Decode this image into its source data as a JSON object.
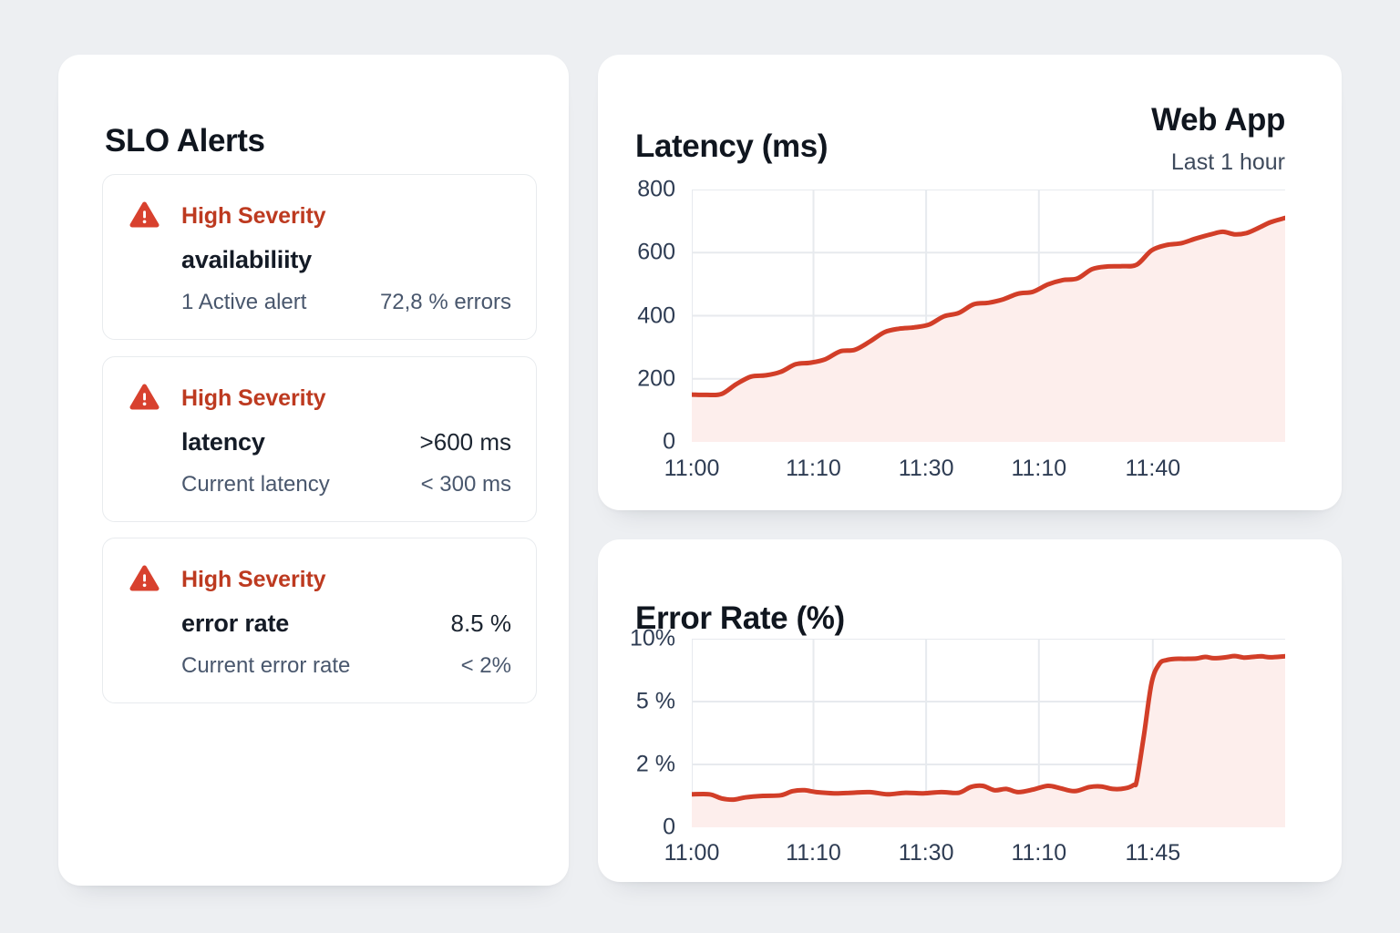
{
  "colors": {
    "page_bg": "#edeff2",
    "panel_bg": "#ffffff",
    "card_border": "#e8ebee",
    "severity_red": "#bd3a20",
    "icon_red": "#d8412e",
    "title_dark": "#10161f",
    "value_dark": "#1b2430",
    "muted_text": "#49576d",
    "axis_text": "#2e3c53",
    "line_red": "#d23e28",
    "area_pink": "#fdeeec",
    "grid": "#e7eaee"
  },
  "alerts_panel": {
    "title": "SLO Alerts",
    "cards": [
      {
        "severity": "High Severity",
        "title": "availabiliity",
        "title_value": "",
        "sub_label": "1 Active alert",
        "sub_value": "72,8 % errors"
      },
      {
        "severity": "High Severity",
        "title": "latency",
        "title_value": ">600 ms",
        "sub_label": "Current latency",
        "sub_value": "< 300 ms"
      },
      {
        "severity": "High Severity",
        "title": "error rate",
        "title_value": "8.5 %",
        "sub_label": "Current error rate",
        "sub_value": "< 2%"
      }
    ]
  },
  "latency_panel": {
    "title": "Latency (ms)",
    "source": "Web App",
    "range": "Last 1 hour"
  },
  "error_panel": {
    "title": "Error Rate (%)"
  },
  "chart_data": [
    {
      "id": "latency",
      "type": "area",
      "title": "Latency (ms)",
      "series_name": "Web App",
      "window_label": "Last 1 hour",
      "unit": "ms",
      "ylim": [
        0,
        800
      ],
      "y_ticks": [
        0,
        200,
        400,
        600,
        800
      ],
      "y_tick_labels": [
        "0",
        "200",
        "400",
        "600",
        "800"
      ],
      "x_ticks": [
        {
          "f": 0.0,
          "label": "11:00"
        },
        {
          "f": 0.205,
          "label": "11:10"
        },
        {
          "f": 0.395,
          "label": "11:30"
        },
        {
          "f": 0.585,
          "label": "11:10"
        },
        {
          "f": 0.777,
          "label": "11:40"
        }
      ],
      "grid": true,
      "line_color": "#d23e28",
      "fill_color": "#fdeeec",
      "grid_color": "#e7eaee",
      "points": [
        [
          0,
          150
        ],
        [
          0.025,
          149
        ],
        [
          0.05,
          152
        ],
        [
          0.075,
          183
        ],
        [
          0.1,
          207
        ],
        [
          0.125,
          211
        ],
        [
          0.15,
          222
        ],
        [
          0.175,
          246
        ],
        [
          0.2,
          251
        ],
        [
          0.225,
          262
        ],
        [
          0.25,
          287
        ],
        [
          0.275,
          292
        ],
        [
          0.3,
          318
        ],
        [
          0.325,
          348
        ],
        [
          0.35,
          359
        ],
        [
          0.375,
          363
        ],
        [
          0.4,
          372
        ],
        [
          0.425,
          398
        ],
        [
          0.45,
          409
        ],
        [
          0.475,
          436
        ],
        [
          0.5,
          441
        ],
        [
          0.525,
          452
        ],
        [
          0.55,
          470
        ],
        [
          0.575,
          476
        ],
        [
          0.6,
          499
        ],
        [
          0.625,
          513
        ],
        [
          0.65,
          518
        ],
        [
          0.675,
          548
        ],
        [
          0.7,
          556
        ],
        [
          0.725,
          557
        ],
        [
          0.75,
          562
        ],
        [
          0.775,
          607
        ],
        [
          0.8,
          624
        ],
        [
          0.825,
          630
        ],
        [
          0.85,
          645
        ],
        [
          0.875,
          658
        ],
        [
          0.895,
          666
        ],
        [
          0.915,
          658
        ],
        [
          0.935,
          662
        ],
        [
          0.955,
          678
        ],
        [
          0.975,
          696
        ],
        [
          1.0,
          710
        ]
      ]
    },
    {
      "id": "error",
      "type": "area",
      "title": "Error Rate (%)",
      "unit": "%",
      "ylim": [
        0,
        10
      ],
      "y_ticks": [
        0,
        2,
        5,
        10
      ],
      "y_tick_labels": [
        "0",
        "2 %",
        "5 %",
        "10%"
      ],
      "x_ticks": [
        {
          "f": 0.0,
          "label": "11:00"
        },
        {
          "f": 0.205,
          "label": "11:10"
        },
        {
          "f": 0.395,
          "label": "11:30"
        },
        {
          "f": 0.585,
          "label": "11:10"
        },
        {
          "f": 0.777,
          "label": "11:45"
        }
      ],
      "grid": true,
      "line_color": "#d23e28",
      "fill_color": "#fdeeec",
      "grid_color": "#e7eaee",
      "points": [
        [
          0,
          1.05
        ],
        [
          0.03,
          1.05
        ],
        [
          0.05,
          0.92
        ],
        [
          0.07,
          0.88
        ],
        [
          0.09,
          0.95
        ],
        [
          0.12,
          1.0
        ],
        [
          0.15,
          1.02
        ],
        [
          0.17,
          1.15
        ],
        [
          0.19,
          1.18
        ],
        [
          0.21,
          1.12
        ],
        [
          0.24,
          1.08
        ],
        [
          0.27,
          1.1
        ],
        [
          0.3,
          1.12
        ],
        [
          0.33,
          1.05
        ],
        [
          0.36,
          1.1
        ],
        [
          0.39,
          1.08
        ],
        [
          0.42,
          1.12
        ],
        [
          0.45,
          1.1
        ],
        [
          0.47,
          1.28
        ],
        [
          0.49,
          1.32
        ],
        [
          0.51,
          1.18
        ],
        [
          0.53,
          1.22
        ],
        [
          0.55,
          1.12
        ],
        [
          0.575,
          1.2
        ],
        [
          0.6,
          1.32
        ],
        [
          0.62,
          1.25
        ],
        [
          0.645,
          1.15
        ],
        [
          0.67,
          1.28
        ],
        [
          0.69,
          1.3
        ],
        [
          0.71,
          1.22
        ],
        [
          0.73,
          1.24
        ],
        [
          0.745,
          1.35
        ],
        [
          0.75,
          1.5
        ],
        [
          0.762,
          3.4
        ],
        [
          0.775,
          6.5
        ],
        [
          0.788,
          8.0
        ],
        [
          0.8,
          8.3
        ],
        [
          0.815,
          8.4
        ],
        [
          0.83,
          8.4
        ],
        [
          0.85,
          8.42
        ],
        [
          0.865,
          8.55
        ],
        [
          0.88,
          8.45
        ],
        [
          0.9,
          8.52
        ],
        [
          0.915,
          8.62
        ],
        [
          0.93,
          8.5
        ],
        [
          0.945,
          8.55
        ],
        [
          0.96,
          8.6
        ],
        [
          0.975,
          8.52
        ],
        [
          1.0,
          8.6
        ]
      ]
    }
  ]
}
